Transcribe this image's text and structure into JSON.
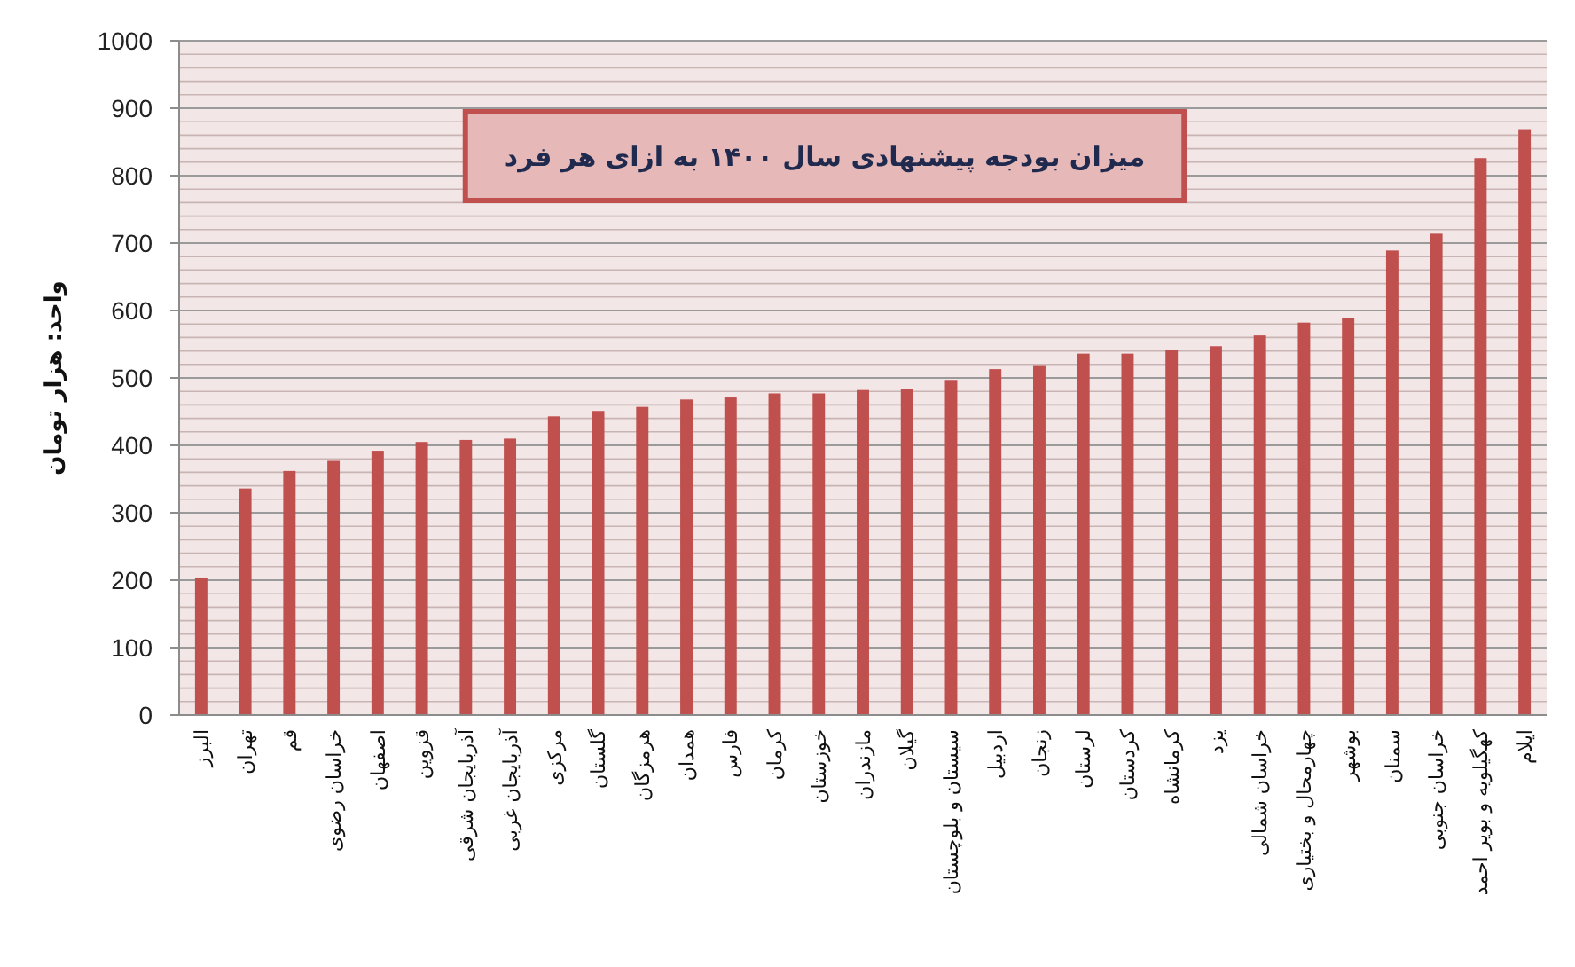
{
  "chart_data": {
    "type": "bar",
    "title": "میزان بودجه پیشنهادی سال ۱۴۰۰ به ازای هر فرد",
    "ylabel": "واحد: هزار تومان",
    "categories": [
      "البرز",
      "تهران",
      "قم",
      "خراسان رضوی",
      "اصفهان",
      "قزوین",
      "آذربایجان شرقی",
      "آذربایجان غربی",
      "مرکزی",
      "گلستان",
      "هرمزگان",
      "همدان",
      "فارس",
      "کرمان",
      "خوزستان",
      "مازندران",
      "گیلان",
      "سیستان و بلوچستان",
      "اردبیل",
      "زنجان",
      "لرستان",
      "کردستان",
      "کرمانشاه",
      "یزد",
      "خراسان شمالی",
      "چهارمحال و بختیاری",
      "بوشهر",
      "سمنان",
      "خراسان جنوبی",
      "کهگیلویه و بویر احمد",
      "ایلام"
    ],
    "values": [
      204,
      336,
      362,
      377,
      392,
      405,
      408,
      410,
      443,
      451,
      457,
      468,
      471,
      477,
      477,
      482,
      483,
      497,
      513,
      519,
      536,
      536,
      542,
      547,
      563,
      582,
      589,
      689,
      714,
      826,
      869
    ],
    "color": "#c0504d",
    "ylim": [
      0,
      1000
    ],
    "yticks": [
      0,
      {
        "value": 20,
        "label": null
      },
      {
        "value": 40,
        "label": null
      },
      {
        "value": 60,
        "label": null
      },
      {
        "value": 80,
        "label": null
      },
      100,
      {
        "value": 120,
        "label": null
      },
      {
        "value": 140,
        "label": null
      },
      {
        "value": 160,
        "label": null
      },
      {
        "value": 180,
        "label": null
      },
      200,
      {
        "value": 220,
        "label": null
      },
      {
        "value": 240,
        "label": null
      },
      {
        "value": 260,
        "label": null
      },
      {
        "value": 280,
        "label": null
      },
      300,
      {
        "value": 320,
        "label": null
      },
      {
        "value": 340,
        "label": null
      },
      {
        "value": 360,
        "label": null
      },
      {
        "value": 380,
        "label": null
      },
      400,
      {
        "value": 420,
        "label": null
      },
      {
        "value": 440,
        "label": null
      },
      {
        "value": 460,
        "label": null
      },
      {
        "value": 480,
        "label": null
      },
      500,
      {
        "value": 520,
        "label": null
      },
      {
        "value": 540,
        "label": null
      },
      {
        "value": 560,
        "label": null
      },
      {
        "value": 580,
        "label": null
      },
      600,
      {
        "value": 620,
        "label": null
      },
      {
        "value": 640,
        "label": null
      },
      {
        "value": 660,
        "label": null
      },
      {
        "value": 680,
        "label": null
      },
      700,
      {
        "value": 720,
        "label": null
      },
      {
        "value": 740,
        "label": null
      },
      {
        "value": 760,
        "label": null
      },
      {
        "value": 780,
        "label": null
      },
      800,
      {
        "value": 820,
        "label": null
      },
      {
        "value": 840,
        "label": null
      },
      {
        "value": 860,
        "label": null
      },
      {
        "value": 880,
        "label": null
      },
      900,
      {
        "value": 920,
        "label": null
      },
      {
        "value": 940,
        "label": null
      },
      {
        "value": 960,
        "label": null
      },
      {
        "value": 980,
        "label": null
      },
      1000
    ],
    "grid": "y"
  }
}
